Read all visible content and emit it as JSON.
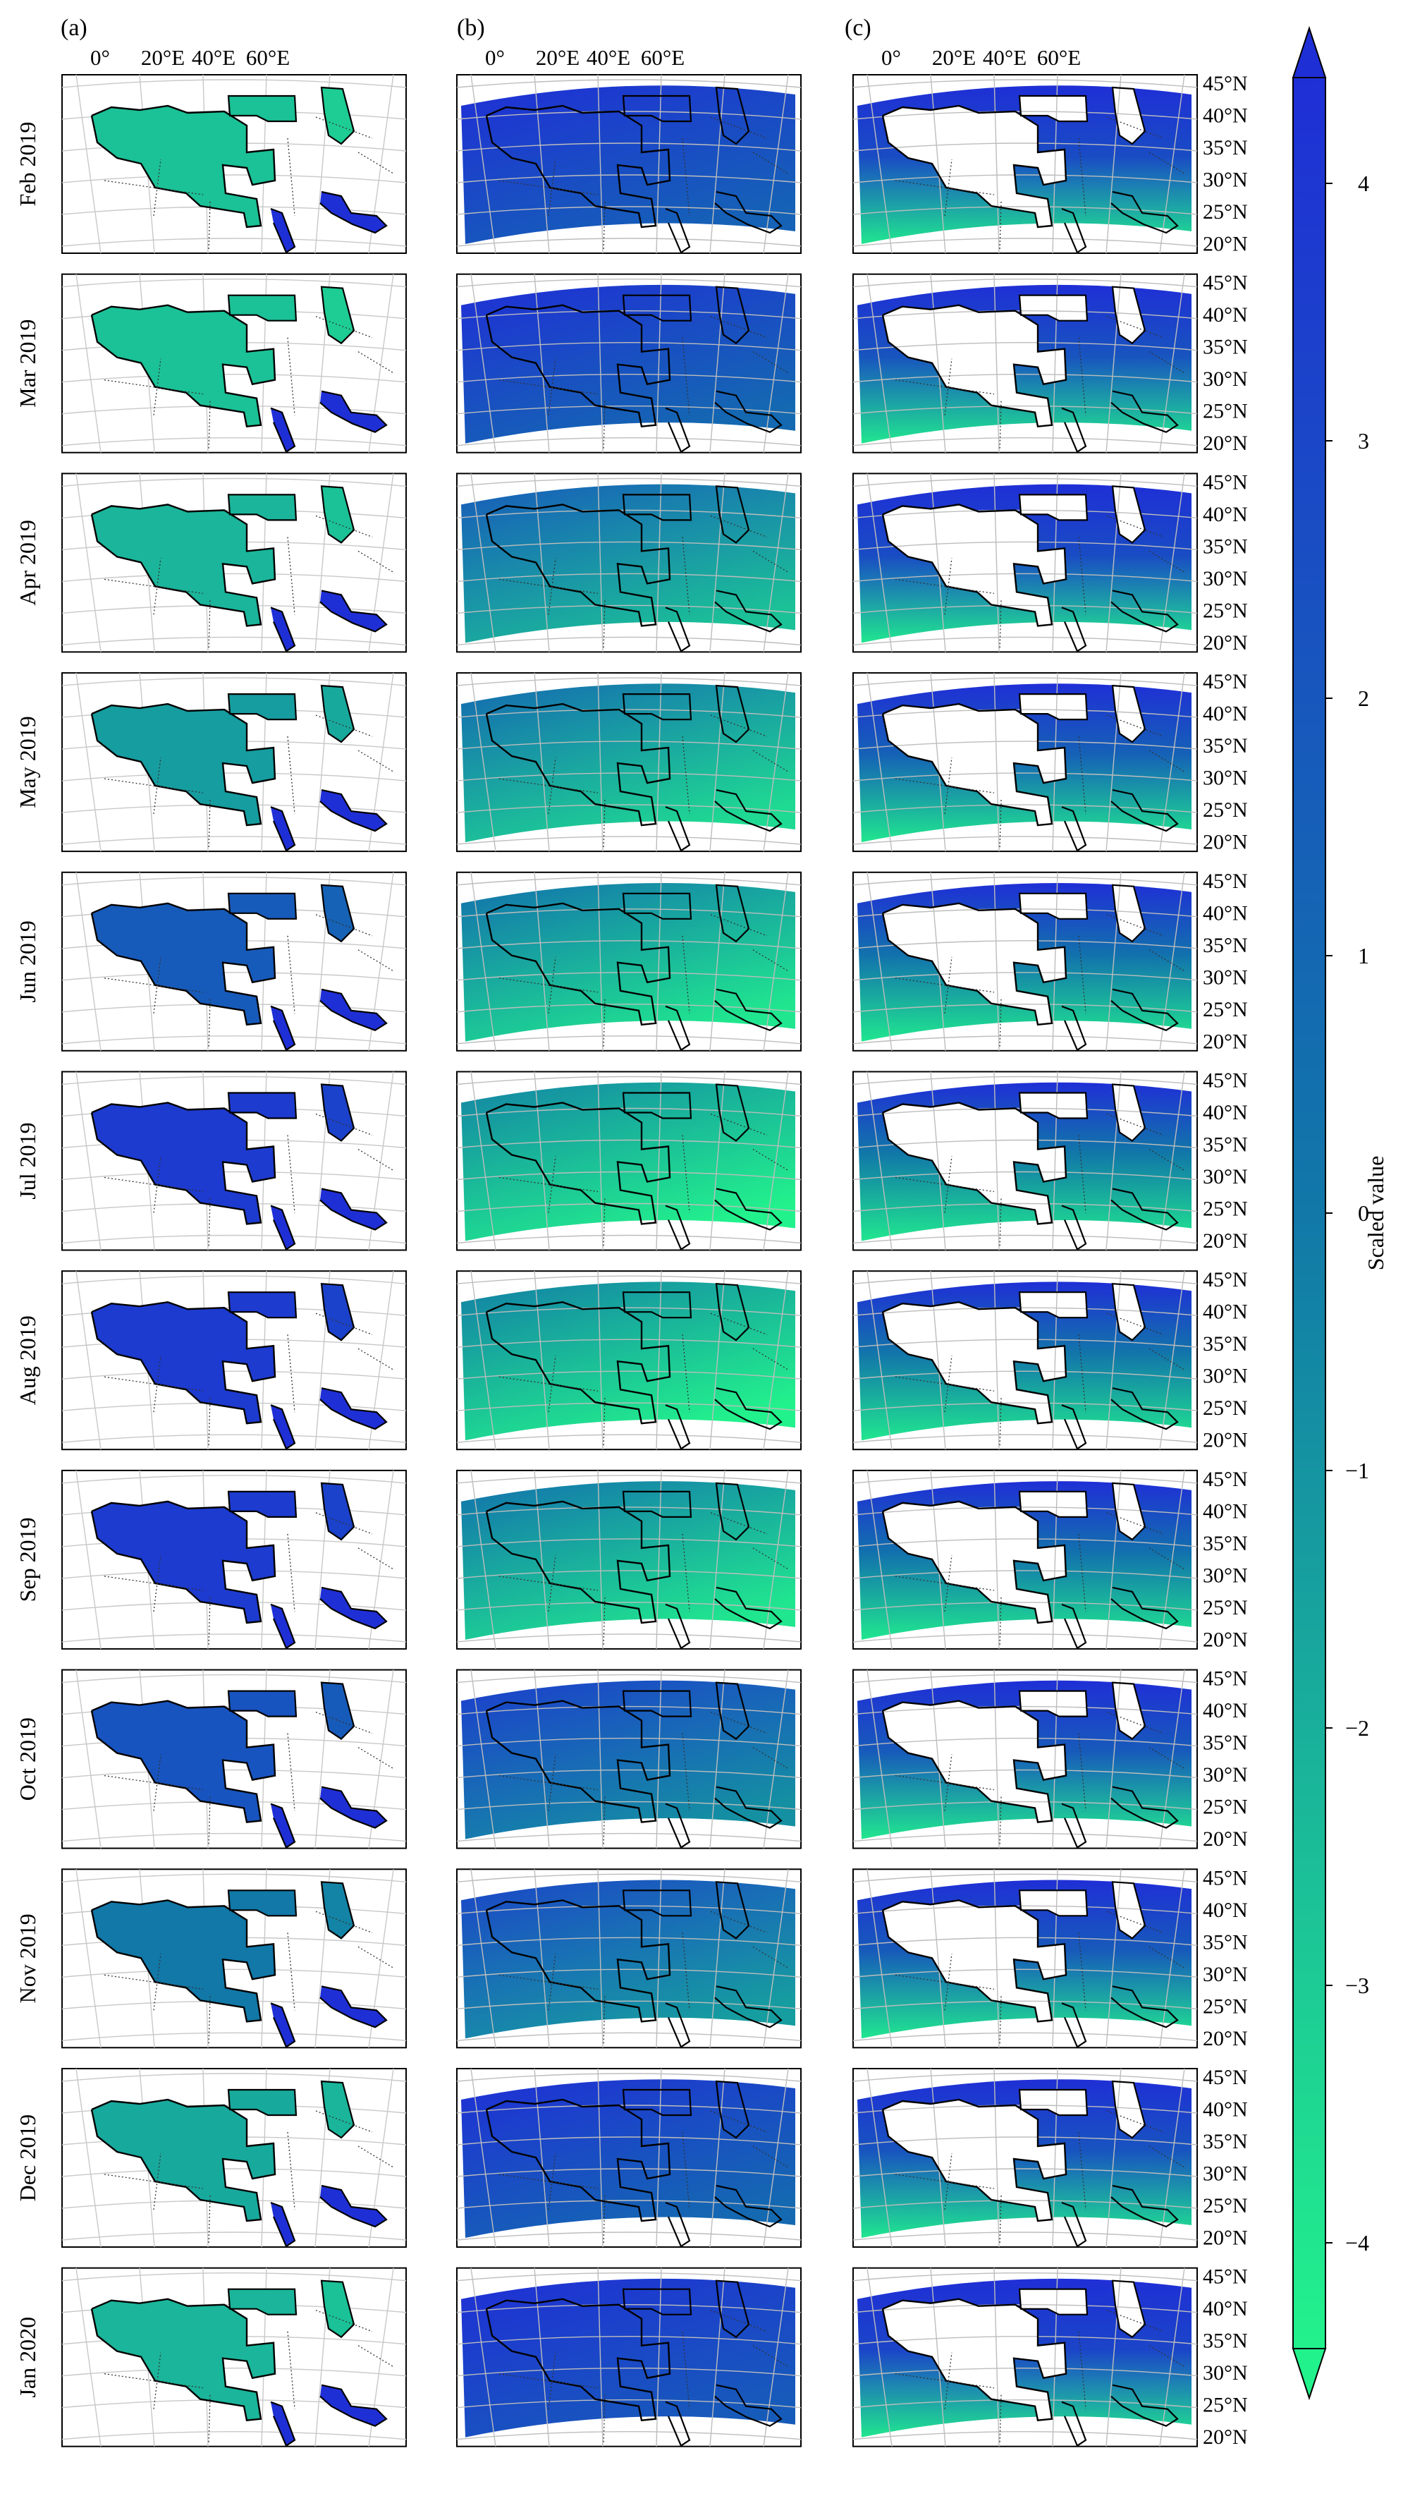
{
  "panels": [
    {
      "letter": "(a)",
      "lon_labels": [
        "0°",
        "20°E",
        "40°E",
        "60°E"
      ]
    },
    {
      "letter": "(b)",
      "lon_labels": [
        "0°",
        "20°E",
        "40°E",
        "60°E"
      ]
    },
    {
      "letter": "(c)",
      "lon_labels": [
        "0°",
        "20°E",
        "40°E",
        "60°E"
      ]
    }
  ],
  "lat_labels": [
    "45°N",
    "40°N",
    "35°N",
    "30°N",
    "25°N",
    "20°N"
  ],
  "colorbar": {
    "label": "Scaled value",
    "ticks": [
      "4",
      "3",
      "2",
      "1",
      "0",
      "−1",
      "−2",
      "−3",
      "−4"
    ],
    "range": [
      -4,
      4
    ],
    "colors": {
      "high": "#1f2fd6",
      "mid": "#1178a8",
      "low": "#22f28c"
    }
  },
  "rows": [
    {
      "month": "Feb 2019",
      "a": 0.2,
      "b": 0.9,
      "c": 0.8
    },
    {
      "month": "Mar 2019",
      "a": 0.2,
      "b": 0.85,
      "c": 0.75
    },
    {
      "month": "Apr 2019",
      "a": 0.25,
      "b": 0.45,
      "c": 0.8
    },
    {
      "month": "May 2019",
      "a": 0.35,
      "b": 0.35,
      "c": 0.65
    },
    {
      "month": "Jun 2019",
      "a": 0.7,
      "b": 0.3,
      "c": 0.55
    },
    {
      "month": "Jul 2019",
      "a": 0.92,
      "b": 0.2,
      "c": 0.5
    },
    {
      "month": "Aug 2019",
      "a": 0.92,
      "b": 0.22,
      "c": 0.52
    },
    {
      "month": "Sep 2019",
      "a": 0.92,
      "b": 0.3,
      "c": 0.55
    },
    {
      "month": "Oct 2019",
      "a": 0.75,
      "b": 0.65,
      "c": 0.7
    },
    {
      "month": "Nov 2019",
      "a": 0.5,
      "b": 0.6,
      "c": 0.7
    },
    {
      "month": "Dec 2019",
      "a": 0.3,
      "b": 0.85,
      "c": 0.75
    },
    {
      "month": "Jan 2020",
      "a": 0.25,
      "b": 0.95,
      "c": 0.85
    }
  ]
}
